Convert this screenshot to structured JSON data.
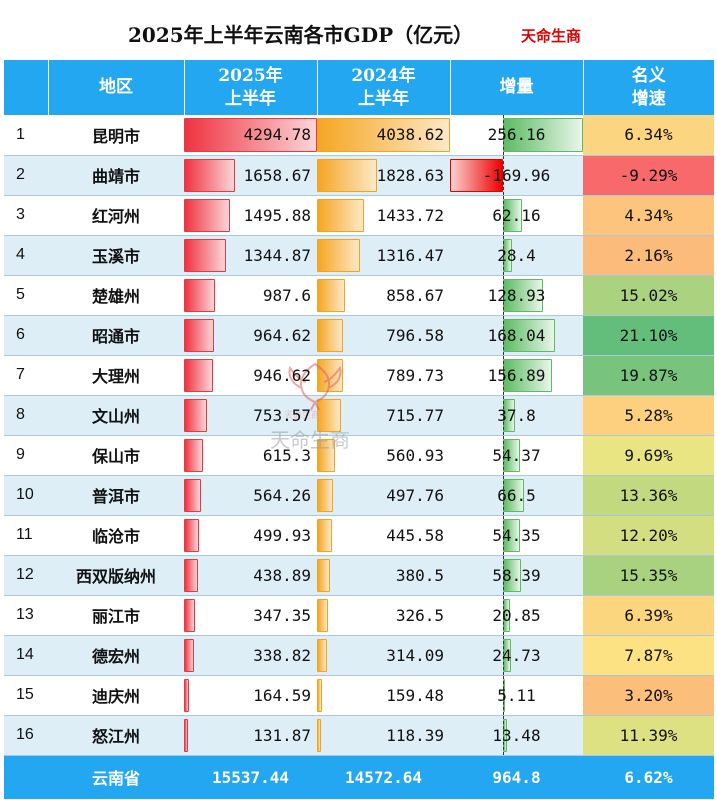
{
  "title": "2025年上半年云南各市GDP（亿元）",
  "brand": "天命生商",
  "header": {
    "region": "地区",
    "cur_line1": "2025年",
    "cur_line2": "上半年",
    "prev_line1": "2024年",
    "prev_line2": "上半年",
    "increase": "增量",
    "rate_line1": "名义",
    "rate_line2": "增速"
  },
  "rows": [
    {
      "rank": "1",
      "name": "昆明市",
      "cur": "4294.78",
      "prev": "4038.62",
      "inc": "256.16",
      "rate": "6.34%",
      "rate_color": "#fbd57f"
    },
    {
      "rank": "2",
      "name": "曲靖市",
      "cur": "1658.67",
      "prev": "1828.63",
      "inc": "-169.96",
      "rate": "-9.29%",
      "rate_color": "#f8696b"
    },
    {
      "rank": "3",
      "name": "红河州",
      "cur": "1495.88",
      "prev": "1433.72",
      "inc": "62.16",
      "rate": "4.34%",
      "rate_color": "#fcc47c"
    },
    {
      "rank": "4",
      "name": "玉溪市",
      "cur": "1344.87",
      "prev": "1316.47",
      "inc": "28.4",
      "rate": "2.16%",
      "rate_color": "#fbbb7b"
    },
    {
      "rank": "5",
      "name": "楚雄州",
      "cur": "987.6",
      "prev": "858.67",
      "inc": "128.93",
      "rate": "15.02%",
      "rate_color": "#aad27f"
    },
    {
      "rank": "6",
      "name": "昭通市",
      "cur": "964.62",
      "prev": "796.58",
      "inc": "168.04",
      "rate": "21.10%",
      "rate_color": "#63be7b"
    },
    {
      "rank": "7",
      "name": "大理州",
      "cur": "946.62",
      "prev": "789.73",
      "inc": "156.89",
      "rate": "19.87%",
      "rate_color": "#78c47c"
    },
    {
      "rank": "8",
      "name": "文山州",
      "cur": "753.57",
      "prev": "715.77",
      "inc": "37.8",
      "rate": "5.28%",
      "rate_color": "#fcd07e"
    },
    {
      "rank": "9",
      "name": "保山市",
      "cur": "615.3",
      "prev": "560.93",
      "inc": "54.37",
      "rate": "9.69%",
      "rate_color": "#e9e583"
    },
    {
      "rank": "10",
      "name": "普洱市",
      "cur": "564.26",
      "prev": "497.76",
      "inc": "66.5",
      "rate": "13.36%",
      "rate_color": "#c2d980"
    },
    {
      "rank": "11",
      "name": "临沧市",
      "cur": "499.93",
      "prev": "445.58",
      "inc": "54.35",
      "rate": "12.20%",
      "rate_color": "#d3de81"
    },
    {
      "rank": "12",
      "name": "西双版纳州",
      "cur": "438.89",
      "prev": "380.5",
      "inc": "58.39",
      "rate": "15.35%",
      "rate_color": "#a8d27f"
    },
    {
      "rank": "13",
      "name": "丽江市",
      "cur": "347.35",
      "prev": "326.5",
      "inc": "20.85",
      "rate": "6.39%",
      "rate_color": "#fcd57f"
    },
    {
      "rank": "14",
      "name": "德宏州",
      "cur": "338.82",
      "prev": "314.09",
      "inc": "24.73",
      "rate": "7.87%",
      "rate_color": "#fde283"
    },
    {
      "rank": "15",
      "name": "迪庆州",
      "cur": "164.59",
      "prev": "159.48",
      "inc": "5.11",
      "rate": "3.20%",
      "rate_color": "#fbbe7b"
    },
    {
      "rank": "16",
      "name": "怒江州",
      "cur": "131.87",
      "prev": "118.39",
      "inc": "13.48",
      "rate": "11.39%",
      "rate_color": "#dde182"
    }
  ],
  "total": {
    "name": "云南省",
    "cur": "15537.44",
    "prev": "14572.64",
    "inc": "964.8",
    "rate": "6.62%"
  },
  "watermark": {
    "sub": "天命生商",
    "text": "天命生商"
  },
  "colors": {
    "header_bg": "#22a7f0",
    "stripe": "#deeef6",
    "brand": "#e00000"
  }
}
